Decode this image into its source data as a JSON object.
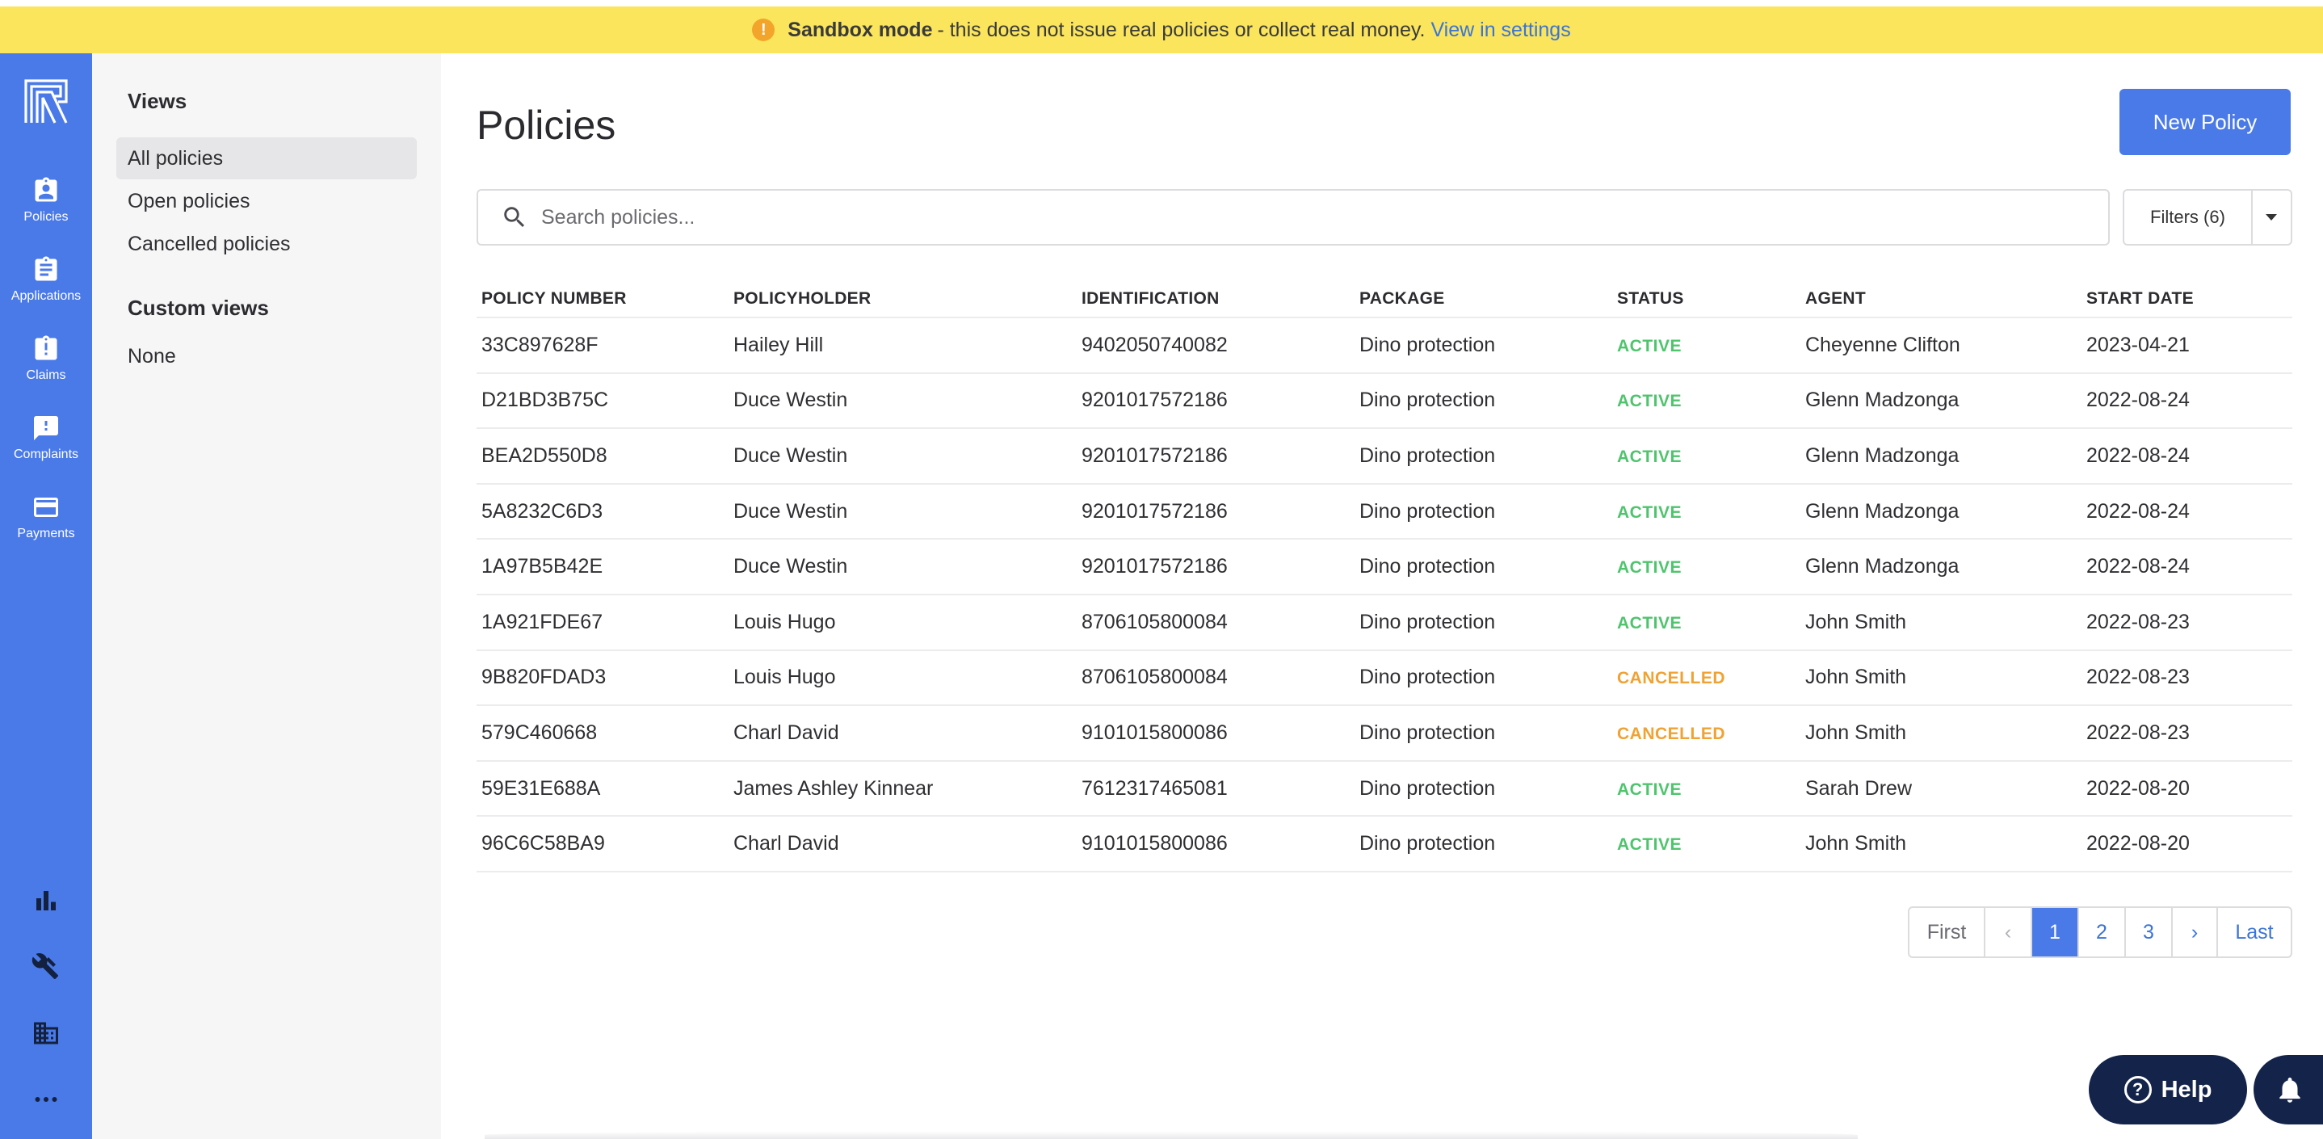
{
  "banner": {
    "title": "Sandbox mode",
    "message": "- this does not issue real policies or collect real money.",
    "link": "View in settings",
    "icon": "alert-icon"
  },
  "nav": {
    "items": [
      {
        "label": "Policies",
        "icon": "policy-clipboard-icon"
      },
      {
        "label": "Applications",
        "icon": "clipboard-list-icon"
      },
      {
        "label": "Claims",
        "icon": "claims-clipboard-icon"
      },
      {
        "label": "Complaints",
        "icon": "feedback-alert-icon"
      },
      {
        "label": "Payments",
        "icon": "credit-card-icon"
      }
    ],
    "bottom_icons": [
      "bar-chart-icon",
      "tools-icon",
      "building-icon",
      "more-icon"
    ],
    "accent": "#4a7ae8"
  },
  "views": {
    "title": "Views",
    "items": [
      "All policies",
      "Open policies",
      "Cancelled policies"
    ],
    "custom_title": "Custom views",
    "custom_empty": "None"
  },
  "main": {
    "title": "Policies",
    "new_button": "New Policy",
    "search_placeholder": "Search policies...",
    "filters_label": "Filters (6)"
  },
  "table": {
    "columns": [
      "POLICY NUMBER",
      "POLICYHOLDER",
      "IDENTIFICATION",
      "PACKAGE",
      "STATUS",
      "AGENT",
      "START DATE"
    ],
    "rows": [
      [
        "33C897628F",
        "Hailey Hill",
        "9402050740082",
        "Dino protection",
        "ACTIVE",
        "Cheyenne Clifton",
        "2023-04-21"
      ],
      [
        "D21BD3B75C",
        "Duce Westin",
        "9201017572186",
        "Dino protection",
        "ACTIVE",
        "Glenn Madzonga",
        "2022-08-24"
      ],
      [
        "BEA2D550D8",
        "Duce Westin",
        "9201017572186",
        "Dino protection",
        "ACTIVE",
        "Glenn Madzonga",
        "2022-08-24"
      ],
      [
        "5A8232C6D3",
        "Duce Westin",
        "9201017572186",
        "Dino protection",
        "ACTIVE",
        "Glenn Madzonga",
        "2022-08-24"
      ],
      [
        "1A97B5B42E",
        "Duce Westin",
        "9201017572186",
        "Dino protection",
        "ACTIVE",
        "Glenn Madzonga",
        "2022-08-24"
      ],
      [
        "1A921FDE67",
        "Louis Hugo",
        "8706105800084",
        "Dino protection",
        "ACTIVE",
        "John Smith",
        "2022-08-23"
      ],
      [
        "9B820FDAD3",
        "Louis Hugo",
        "8706105800084",
        "Dino protection",
        "CANCELLED",
        "John Smith",
        "2022-08-23"
      ],
      [
        "579C460668",
        "Charl David",
        "9101015800086",
        "Dino protection",
        "CANCELLED",
        "John Smith",
        "2022-08-23"
      ],
      [
        "59E31E688A",
        "James Ashley Kinnear",
        "7612317465081",
        "Dino protection",
        "ACTIVE",
        "Sarah Drew",
        "2022-08-20"
      ],
      [
        "96C6C58BA9",
        "Charl David",
        "9101015800086",
        "Dino protection",
        "ACTIVE",
        "John Smith",
        "2022-08-20"
      ]
    ],
    "status_colors": {
      "ACTIVE": "#4ec46d",
      "CANCELLED": "#f0a232"
    }
  },
  "pagination": {
    "first": "First",
    "prev": "‹",
    "pages": [
      "1",
      "2",
      "3"
    ],
    "current": "1",
    "next": "›",
    "last": "Last"
  },
  "help": {
    "label": "Help",
    "glyph": "?"
  }
}
